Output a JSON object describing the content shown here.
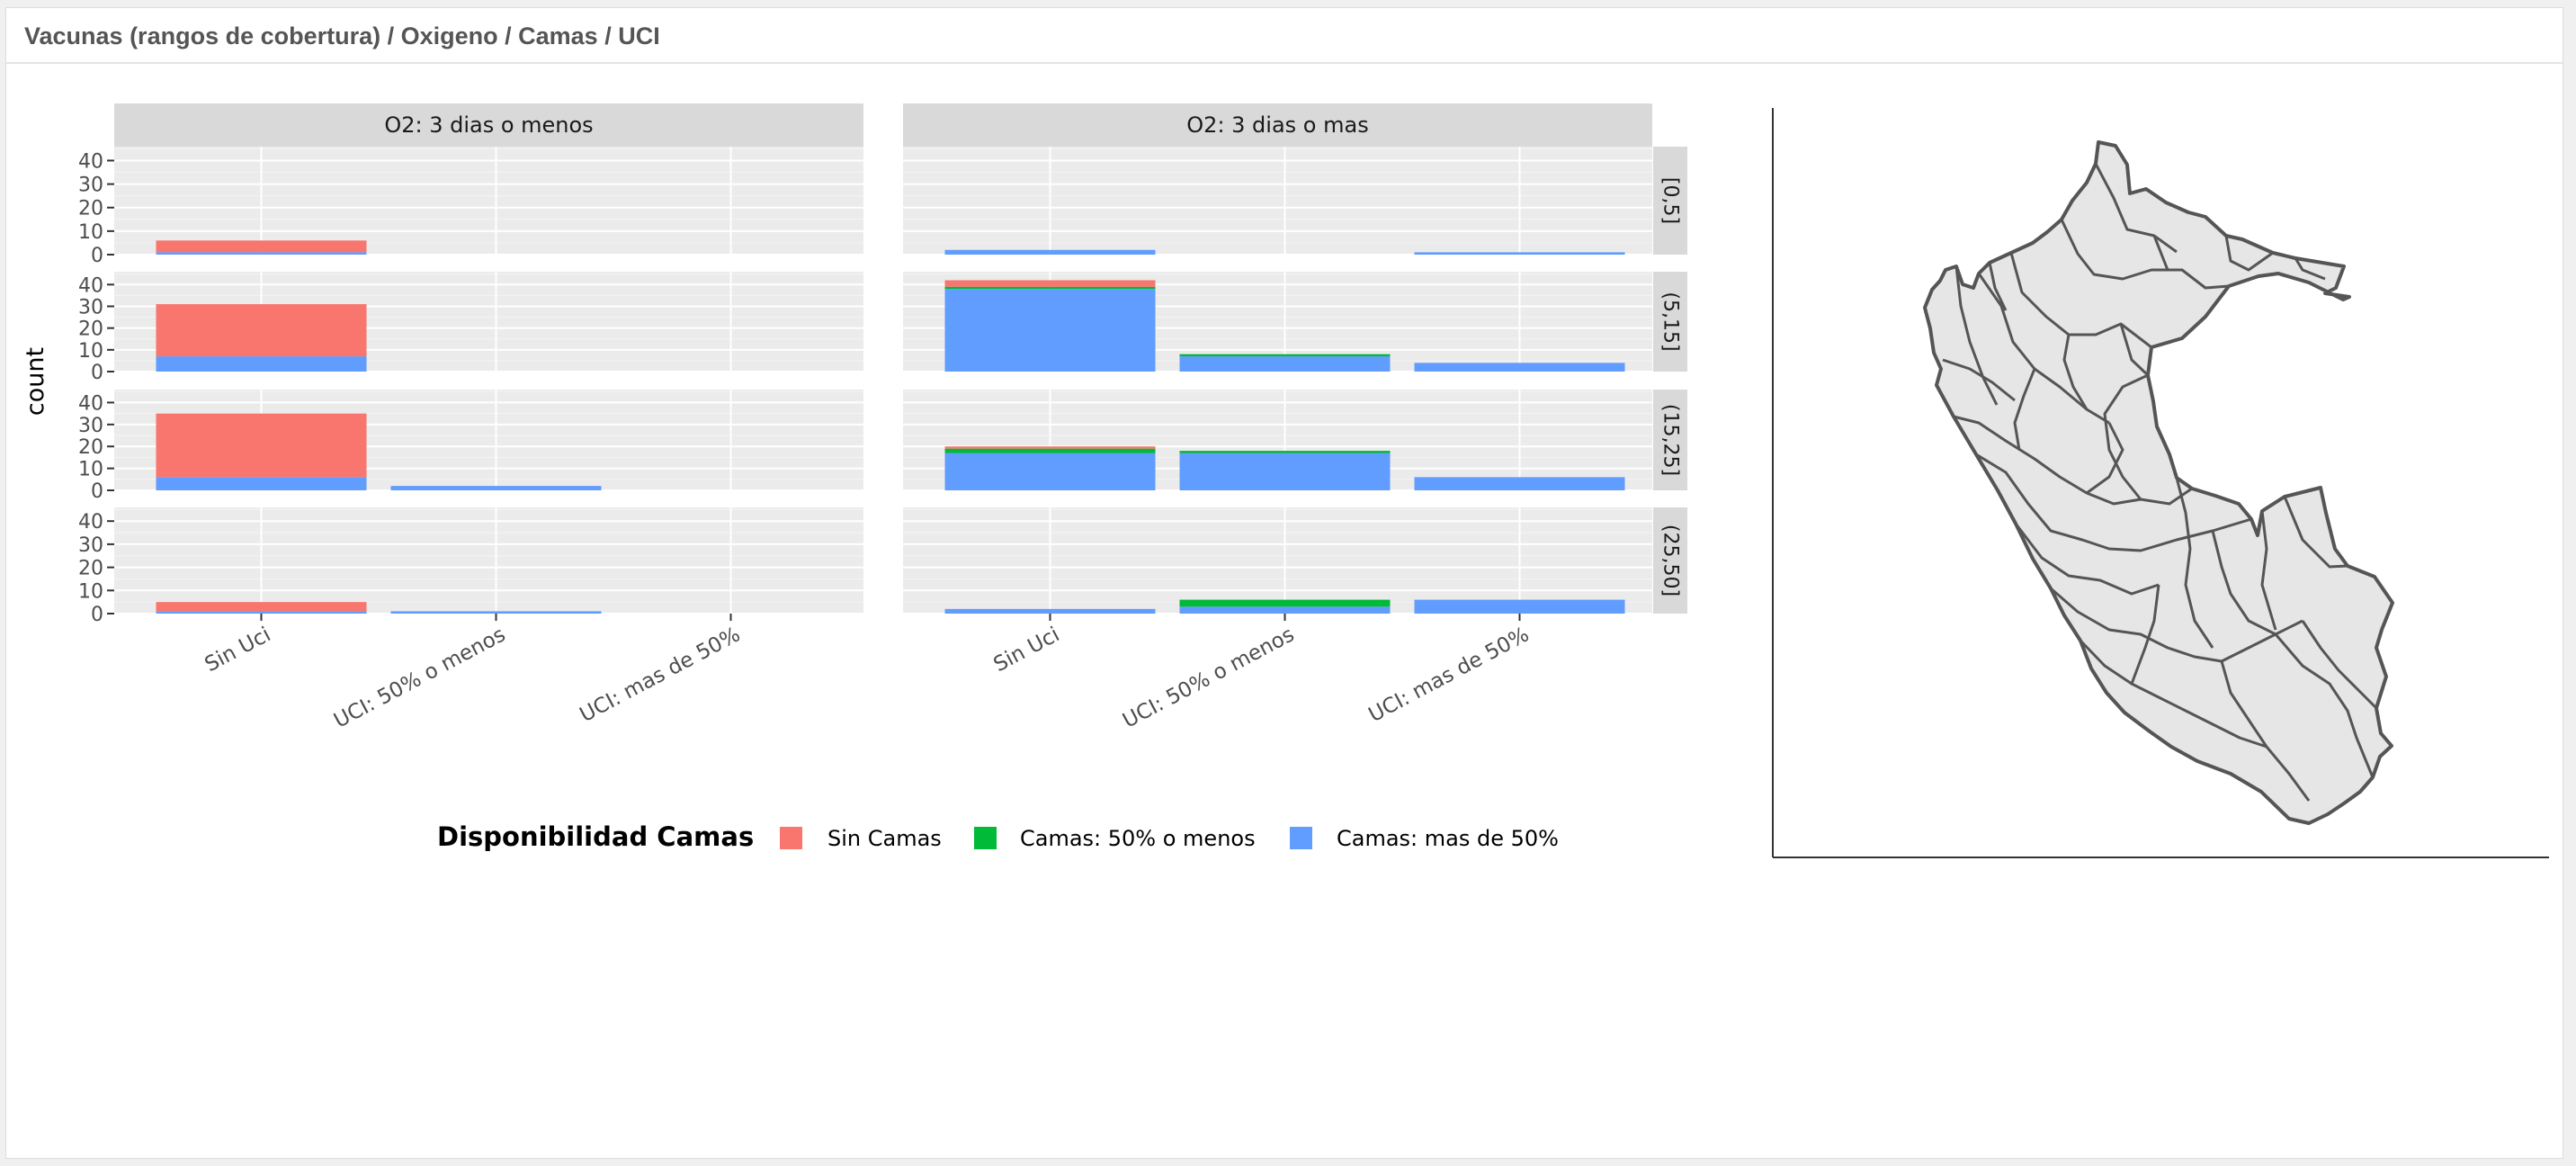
{
  "panel": {
    "title": "Vacunas (rangos de cobertura) / Oxigeno / Camas / UCI"
  },
  "chart_data": {
    "type": "bar",
    "stacked": true,
    "ylabel": "count",
    "ylim": [
      0,
      45
    ],
    "yticks": [
      0,
      10,
      20,
      30,
      40
    ],
    "grid": true,
    "categories": [
      "Sin Uci",
      "UCI: 50% o menos",
      "UCI: mas de 50%"
    ],
    "facet_columns": [
      "O2: 3 dias o menos",
      "O2: 3 dias o mas"
    ],
    "facet_rows": [
      "[0,5]",
      "(5,15]",
      "(15,25]",
      "(25,50]"
    ],
    "legend": {
      "title": "Disponibilidad Camas",
      "position": "bottom",
      "entries": [
        {
          "key": "sin",
          "label": "Sin Camas",
          "color": "#F8766D"
        },
        {
          "key": "med",
          "label": "Camas: 50% o menos",
          "color": "#00BA38"
        },
        {
          "key": "alta",
          "label": "Camas: mas de 50%",
          "color": "#619CFF"
        }
      ]
    },
    "panels": [
      {
        "row": 0,
        "col": 0,
        "stacks": [
          {
            "alta": 1,
            "med": 0,
            "sin": 5
          },
          {
            "alta": 0,
            "med": 0,
            "sin": 0
          },
          {
            "alta": 0,
            "med": 0,
            "sin": 0
          }
        ]
      },
      {
        "row": 0,
        "col": 1,
        "stacks": [
          {
            "alta": 2,
            "med": 0,
            "sin": 0
          },
          {
            "alta": 0,
            "med": 0,
            "sin": 0
          },
          {
            "alta": 1,
            "med": 0,
            "sin": 0
          }
        ]
      },
      {
        "row": 1,
        "col": 0,
        "stacks": [
          {
            "alta": 7,
            "med": 0,
            "sin": 24
          },
          {
            "alta": 0,
            "med": 0,
            "sin": 0
          },
          {
            "alta": 0,
            "med": 0,
            "sin": 0
          }
        ]
      },
      {
        "row": 1,
        "col": 1,
        "stacks": [
          {
            "alta": 38,
            "med": 1,
            "sin": 3
          },
          {
            "alta": 7,
            "med": 1,
            "sin": 0
          },
          {
            "alta": 4,
            "med": 0,
            "sin": 0
          }
        ]
      },
      {
        "row": 2,
        "col": 0,
        "stacks": [
          {
            "alta": 6,
            "med": 0,
            "sin": 29
          },
          {
            "alta": 2,
            "med": 0,
            "sin": 0
          },
          {
            "alta": 0,
            "med": 0,
            "sin": 0
          }
        ]
      },
      {
        "row": 2,
        "col": 1,
        "stacks": [
          {
            "alta": 17,
            "med": 2,
            "sin": 1
          },
          {
            "alta": 17,
            "med": 1,
            "sin": 0
          },
          {
            "alta": 6,
            "med": 0,
            "sin": 0
          }
        ]
      },
      {
        "row": 3,
        "col": 0,
        "stacks": [
          {
            "alta": 1,
            "med": 0,
            "sin": 4
          },
          {
            "alta": 1,
            "med": 0,
            "sin": 0
          },
          {
            "alta": 0,
            "med": 0,
            "sin": 0
          }
        ]
      },
      {
        "row": 3,
        "col": 1,
        "stacks": [
          {
            "alta": 2,
            "med": 0,
            "sin": 0
          },
          {
            "alta": 3,
            "med": 3,
            "sin": 0
          },
          {
            "alta": 6,
            "med": 0,
            "sin": 0
          }
        ]
      }
    ]
  },
  "map": {
    "fill": "#e6e6e6",
    "stroke": "#555555"
  }
}
